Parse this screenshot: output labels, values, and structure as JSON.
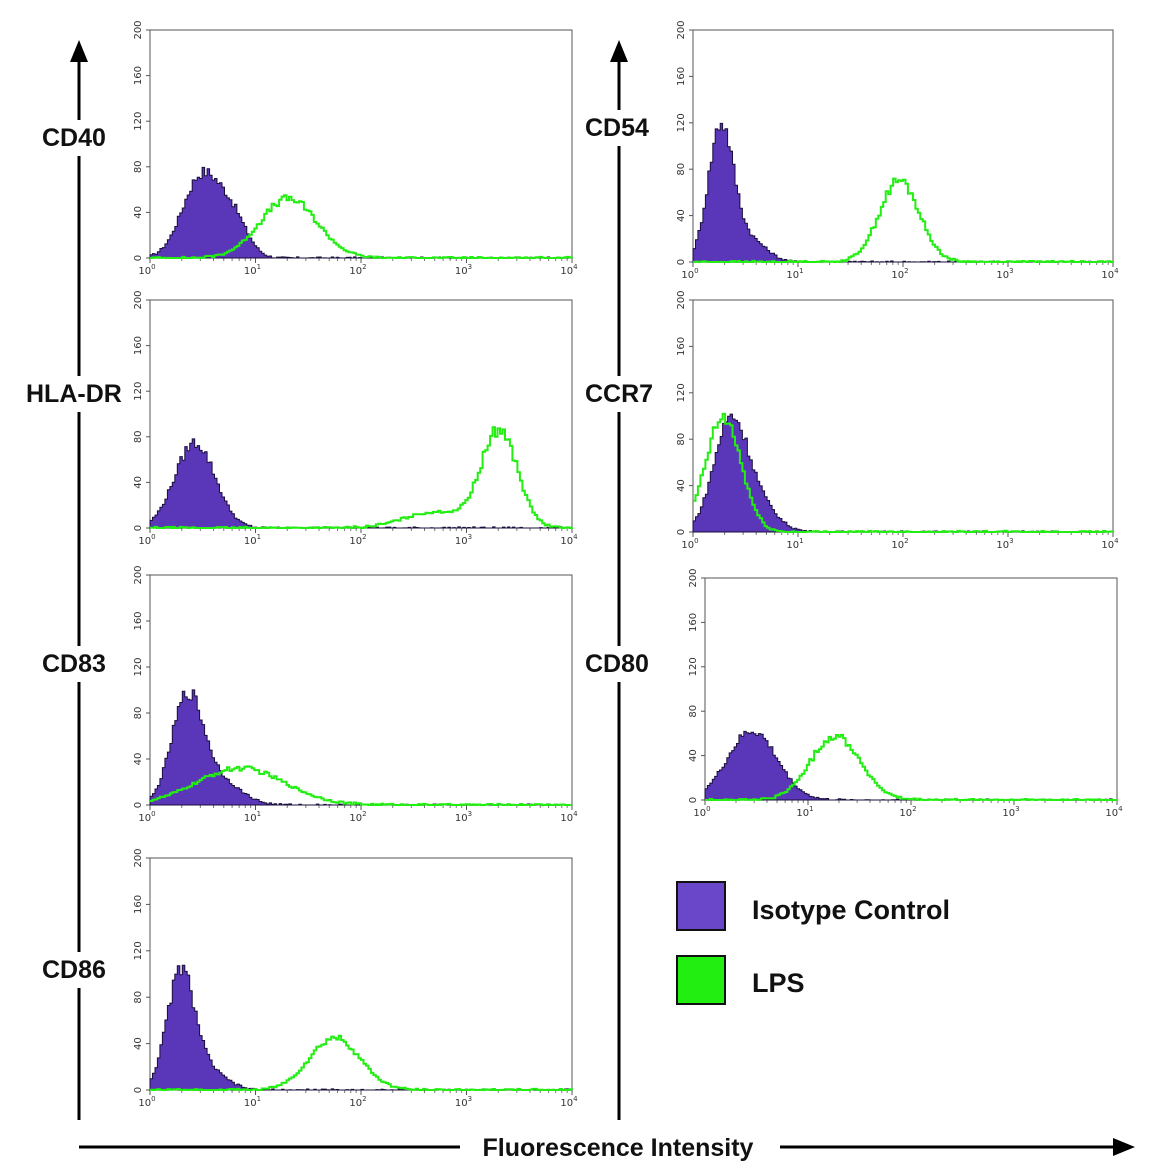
{
  "figure": {
    "x_axis_title": "Fluorescence Intensity",
    "legend": [
      {
        "label": "Isotype Control",
        "color": "#6a47c9"
      },
      {
        "label": "LPS",
        "color": "#22ee11"
      }
    ]
  },
  "chart_data": [
    {
      "type": "area",
      "marker": "CD40",
      "xscale": "log",
      "xlim": [
        1,
        10000
      ],
      "ylim": [
        0,
        200
      ],
      "yticks": [
        0,
        40,
        80,
        120,
        160,
        200
      ],
      "xticks": [
        "10^0",
        "10^1",
        "10^2",
        "10^3",
        "10^4"
      ],
      "series": [
        {
          "legend_ref": 0,
          "color": "#5a36b8",
          "fill": true,
          "peaks": [
            {
              "x": 3,
              "height": 72,
              "spread": 0.18
            },
            {
              "x": 6,
              "height": 30,
              "spread": 0.14
            }
          ]
        },
        {
          "legend_ref": 1,
          "color": "#22ee11",
          "fill": false,
          "peaks": [
            {
              "x": 20,
              "height": 52,
              "spread": 0.27
            }
          ]
        }
      ]
    },
    {
      "type": "area",
      "marker": "CD54",
      "xscale": "log",
      "xlim": [
        1,
        10000
      ],
      "ylim": [
        0,
        200
      ],
      "yticks": [
        0,
        40,
        80,
        120,
        160,
        200
      ],
      "xticks": [
        "10^0",
        "10^1",
        "10^2",
        "10^3",
        "10^4"
      ],
      "series": [
        {
          "legend_ref": 0,
          "color": "#5a36b8",
          "fill": true,
          "peaks": [
            {
              "x": 1.8,
              "height": 118,
              "spread": 0.12
            },
            {
              "x": 3.5,
              "height": 18,
              "spread": 0.15
            }
          ]
        },
        {
          "legend_ref": 1,
          "color": "#22ee11",
          "fill": false,
          "peaks": [
            {
              "x": 90,
              "height": 70,
              "spread": 0.19
            }
          ]
        }
      ]
    },
    {
      "type": "area",
      "marker": "HLA-DR",
      "xscale": "log",
      "xlim": [
        1,
        10000
      ],
      "ylim": [
        0,
        200
      ],
      "yticks": [
        0,
        40,
        80,
        120,
        160,
        200
      ],
      "xticks": [
        "10^0",
        "10^1",
        "10^2",
        "10^3",
        "10^4"
      ],
      "series": [
        {
          "legend_ref": 0,
          "color": "#5a36b8",
          "fill": true,
          "peaks": [
            {
              "x": 2.6,
              "height": 75,
              "spread": 0.19
            }
          ]
        },
        {
          "legend_ref": 1,
          "color": "#22ee11",
          "fill": false,
          "peaks": [
            {
              "x": 2000,
              "height": 85,
              "spread": 0.17
            },
            {
              "x": 500,
              "height": 14,
              "spread": 0.3
            }
          ]
        }
      ]
    },
    {
      "type": "area",
      "marker": "CCR7",
      "xscale": "log",
      "xlim": [
        1,
        10000
      ],
      "ylim": [
        0,
        200
      ],
      "yticks": [
        0,
        40,
        80,
        120,
        160,
        200
      ],
      "xticks": [
        "10^0",
        "10^1",
        "10^2",
        "10^3",
        "10^4"
      ],
      "series": [
        {
          "legend_ref": 0,
          "color": "#5a36b8",
          "fill": true,
          "peaks": [
            {
              "x": 2.2,
              "height": 92,
              "spread": 0.16
            },
            {
              "x": 4,
              "height": 22,
              "spread": 0.18
            }
          ]
        },
        {
          "legend_ref": 1,
          "color": "#22ee11",
          "fill": false,
          "peaks": [
            {
              "x": 1.9,
              "height": 98,
              "spread": 0.17
            }
          ]
        }
      ]
    },
    {
      "type": "area",
      "marker": "CD83",
      "xscale": "log",
      "xlim": [
        1,
        10000
      ],
      "ylim": [
        0,
        200
      ],
      "yticks": [
        0,
        40,
        80,
        120,
        160,
        200
      ],
      "xticks": [
        "10^0",
        "10^1",
        "10^2",
        "10^3",
        "10^4"
      ],
      "series": [
        {
          "legend_ref": 0,
          "color": "#5a36b8",
          "fill": true,
          "peaks": [
            {
              "x": 2.2,
              "height": 92,
              "spread": 0.15
            },
            {
              "x": 4.5,
              "height": 20,
              "spread": 0.2
            }
          ]
        },
        {
          "legend_ref": 1,
          "color": "#22ee11",
          "fill": false,
          "peaks": [
            {
              "x": 7,
              "height": 32,
              "spread": 0.42
            }
          ]
        }
      ]
    },
    {
      "type": "area",
      "marker": "CD80",
      "xscale": "log",
      "xlim": [
        1,
        10000
      ],
      "ylim": [
        0,
        200
      ],
      "yticks": [
        0,
        40,
        80,
        120,
        160,
        200
      ],
      "xticks": [
        "10^0",
        "10^1",
        "10^2",
        "10^3",
        "10^4"
      ],
      "series": [
        {
          "legend_ref": 0,
          "color": "#5a36b8",
          "fill": true,
          "peaks": [
            {
              "x": 2.8,
              "height": 62,
              "spread": 0.24
            }
          ]
        },
        {
          "legend_ref": 1,
          "color": "#22ee11",
          "fill": false,
          "peaks": [
            {
              "x": 18,
              "height": 58,
              "spread": 0.24
            }
          ]
        }
      ]
    },
    {
      "type": "area",
      "marker": "CD86",
      "xscale": "log",
      "xlim": [
        1,
        10000
      ],
      "ylim": [
        0,
        200
      ],
      "yticks": [
        0,
        40,
        80,
        120,
        160,
        200
      ],
      "xticks": [
        "10^0",
        "10^1",
        "10^2",
        "10^3",
        "10^4"
      ],
      "series": [
        {
          "legend_ref": 0,
          "color": "#5a36b8",
          "fill": true,
          "peaks": [
            {
              "x": 1.9,
              "height": 100,
              "spread": 0.13
            },
            {
              "x": 3.5,
              "height": 16,
              "spread": 0.17
            }
          ]
        },
        {
          "legend_ref": 1,
          "color": "#22ee11",
          "fill": false,
          "peaks": [
            {
              "x": 55,
              "height": 45,
              "spread": 0.24
            }
          ]
        }
      ]
    }
  ]
}
